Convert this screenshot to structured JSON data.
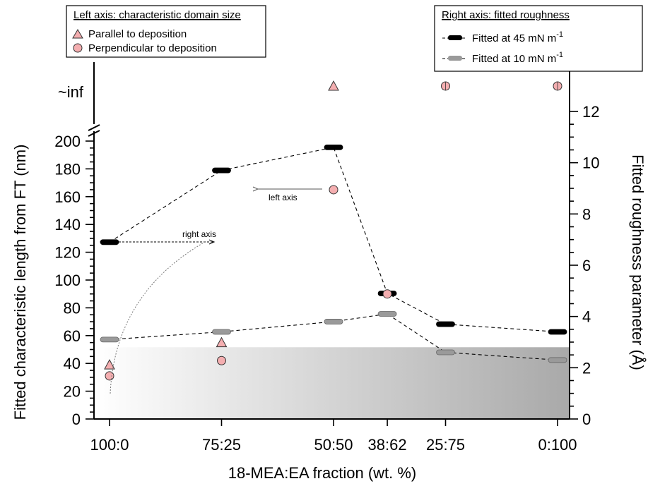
{
  "chart_data": {
    "type": "scatter",
    "title": "",
    "xlabel": "18-MEA:EA fraction (wt. %)",
    "ylabel_left": "Fitted characteristic length from FT (nm)",
    "ylabel_right": "Fitted roughness parameter (Å)",
    "categories": [
      "100:0",
      "75:25",
      "50:50",
      "38:62",
      "25:75",
      "0:100"
    ],
    "x_positions": [
      0,
      25,
      50,
      62,
      75,
      100
    ],
    "ylim_left": [
      0,
      200
    ],
    "left_ticks": [
      0,
      20,
      40,
      60,
      80,
      100,
      120,
      140,
      160,
      180,
      200
    ],
    "left_break_label": "~inf",
    "ylim_right": [
      0,
      12
    ],
    "right_ticks": [
      0,
      2,
      4,
      6,
      8,
      10,
      12
    ],
    "legend_left": {
      "title": "Left axis: characteristic domain size",
      "entries": [
        "Parallel to deposition",
        "Perpendicular to deposition"
      ]
    },
    "legend_right": {
      "title": "Right axis: fitted roughness",
      "entries": [
        {
          "text": "Fitted at 45 mN m",
          "sup": "-1"
        },
        {
          "text": "Fitted at 10 mN m",
          "sup": "-1"
        }
      ]
    },
    "series": [
      {
        "name": "Parallel to deposition",
        "axis": "left",
        "marker": "triangle",
        "color": "#f4aeb0",
        "values": [
          39,
          55,
          "inf",
          null,
          null,
          null
        ]
      },
      {
        "name": "Perpendicular to deposition",
        "axis": "left",
        "marker": "circle",
        "color": "#f4aeb0",
        "values": [
          31,
          42,
          165,
          90,
          "inf",
          "inf"
        ]
      },
      {
        "name": "Fitted at 45 mN m-1",
        "axis": "right",
        "marker": "bar",
        "color": "#000000",
        "values": [
          6.9,
          9.7,
          10.6,
          4.9,
          3.7,
          3.4
        ]
      },
      {
        "name": "Fitted at 10 mN m-1",
        "axis": "right",
        "marker": "bar",
        "color": "#9a9a9a",
        "values": [
          3.1,
          3.4,
          3.8,
          4.1,
          2.6,
          2.3
        ]
      }
    ],
    "shaded_band_right_max": 2.8,
    "annotations": [
      "right axis",
      "left axis"
    ],
    "colors": {
      "marker_fill": "#f4aeb0",
      "high_pressure": "#000000",
      "low_pressure": "#9a9a9a"
    }
  }
}
